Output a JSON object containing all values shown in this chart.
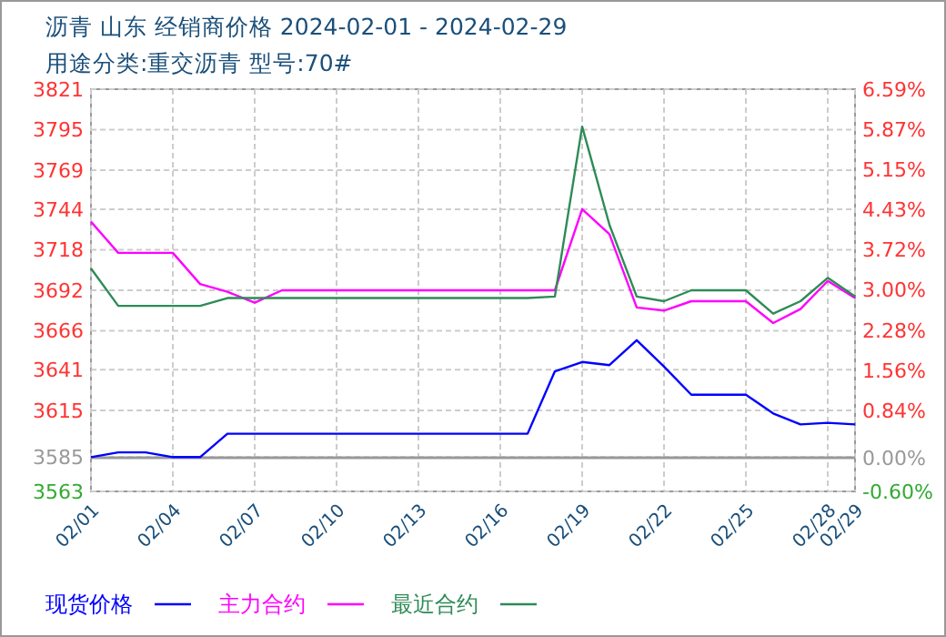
{
  "chart_data": {
    "type": "line",
    "title": "沥青 山东 经销商价格 2024-02-01 - 2024-02-29",
    "subtitle": "用途分类:重交沥青 型号:70#",
    "x": [
      "2024-02-01",
      "2024-02-02",
      "2024-02-03",
      "2024-02-04",
      "2024-02-05",
      "2024-02-06",
      "2024-02-07",
      "2024-02-08",
      "2024-02-09",
      "2024-02-10",
      "2024-02-11",
      "2024-02-12",
      "2024-02-13",
      "2024-02-14",
      "2024-02-15",
      "2024-02-16",
      "2024-02-17",
      "2024-02-18",
      "2024-02-19",
      "2024-02-20",
      "2024-02-21",
      "2024-02-22",
      "2024-02-23",
      "2024-02-24",
      "2024-02-25",
      "2024-02-26",
      "2024-02-27",
      "2024-02-28",
      "2024-02-29"
    ],
    "series": [
      {
        "name": "现货价格",
        "color": "#0000ff",
        "values": [
          3585,
          3588,
          3588,
          3585,
          3585,
          3600,
          3600,
          3600,
          3600,
          3600,
          3600,
          3600,
          3600,
          3600,
          3600,
          3600,
          3600,
          3640,
          3646,
          3644,
          3660,
          3643,
          3625,
          3625,
          3625,
          3613,
          3606,
          3607,
          3606
        ]
      },
      {
        "name": "主力合约",
        "color": "#ff00ff",
        "values": [
          3736,
          3716,
          3716,
          3716,
          3696,
          3691,
          3684,
          3692,
          3692,
          3692,
          3692,
          3692,
          3692,
          3692,
          3692,
          3692,
          3692,
          3692,
          3744,
          3728,
          3681,
          3679,
          3685,
          3685,
          3685,
          3671,
          3680,
          3698,
          3687
        ]
      },
      {
        "name": "最近合约",
        "color": "#2e8b57",
        "values": [
          3706,
          3682,
          3682,
          3682,
          3682,
          3687,
          3687,
          3687,
          3687,
          3687,
          3687,
          3687,
          3687,
          3687,
          3687,
          3687,
          3687,
          3688,
          3797,
          3734,
          3688,
          3685,
          3692,
          3692,
          3692,
          3677,
          3685,
          3700,
          3688
        ]
      }
    ],
    "xlim": [
      "2024-02-01",
      "2024-02-29"
    ],
    "xticks": [
      {
        "value": "2024-02-01",
        "label": "02/01"
      },
      {
        "value": "2024-02-04",
        "label": "02/04"
      },
      {
        "value": "2024-02-07",
        "label": "02/07"
      },
      {
        "value": "2024-02-10",
        "label": "02/10"
      },
      {
        "value": "2024-02-13",
        "label": "02/13"
      },
      {
        "value": "2024-02-16",
        "label": "02/16"
      },
      {
        "value": "2024-02-19",
        "label": "02/19"
      },
      {
        "value": "2024-02-22",
        "label": "02/22"
      },
      {
        "value": "2024-02-25",
        "label": "02/25"
      },
      {
        "value": "2024-02-28",
        "label": "02/28"
      },
      {
        "value": "2024-02-29",
        "label": "02/29"
      }
    ],
    "ylim": [
      3563,
      3821
    ],
    "yticks": [
      3563,
      3585,
      3615,
      3641,
      3666,
      3692,
      3718,
      3744,
      3769,
      3795,
      3821
    ],
    "y2lim": [
      -0.6,
      6.59
    ],
    "y2ticks": [
      {
        "value": -0.6,
        "label": "-0.60%"
      },
      {
        "value": 0,
        "label": "0.00%"
      },
      {
        "value": 0.84,
        "label": "0.84%"
      },
      {
        "value": 1.56,
        "label": "1.56%"
      },
      {
        "value": 2.28,
        "label": "2.28%"
      },
      {
        "value": 3.0,
        "label": "3.00%"
      },
      {
        "value": 3.72,
        "label": "3.72%"
      },
      {
        "value": 4.43,
        "label": "4.43%"
      },
      {
        "value": 5.15,
        "label": "5.15%"
      },
      {
        "value": 5.87,
        "label": "5.87%"
      },
      {
        "value": 6.59,
        "label": "6.59%"
      }
    ],
    "ref_lines": [
      {
        "axis": "y2",
        "value": 0,
        "color": "#999999"
      }
    ],
    "grid": true,
    "legend": "bottom",
    "marker": "none",
    "line_style": "solid"
  }
}
